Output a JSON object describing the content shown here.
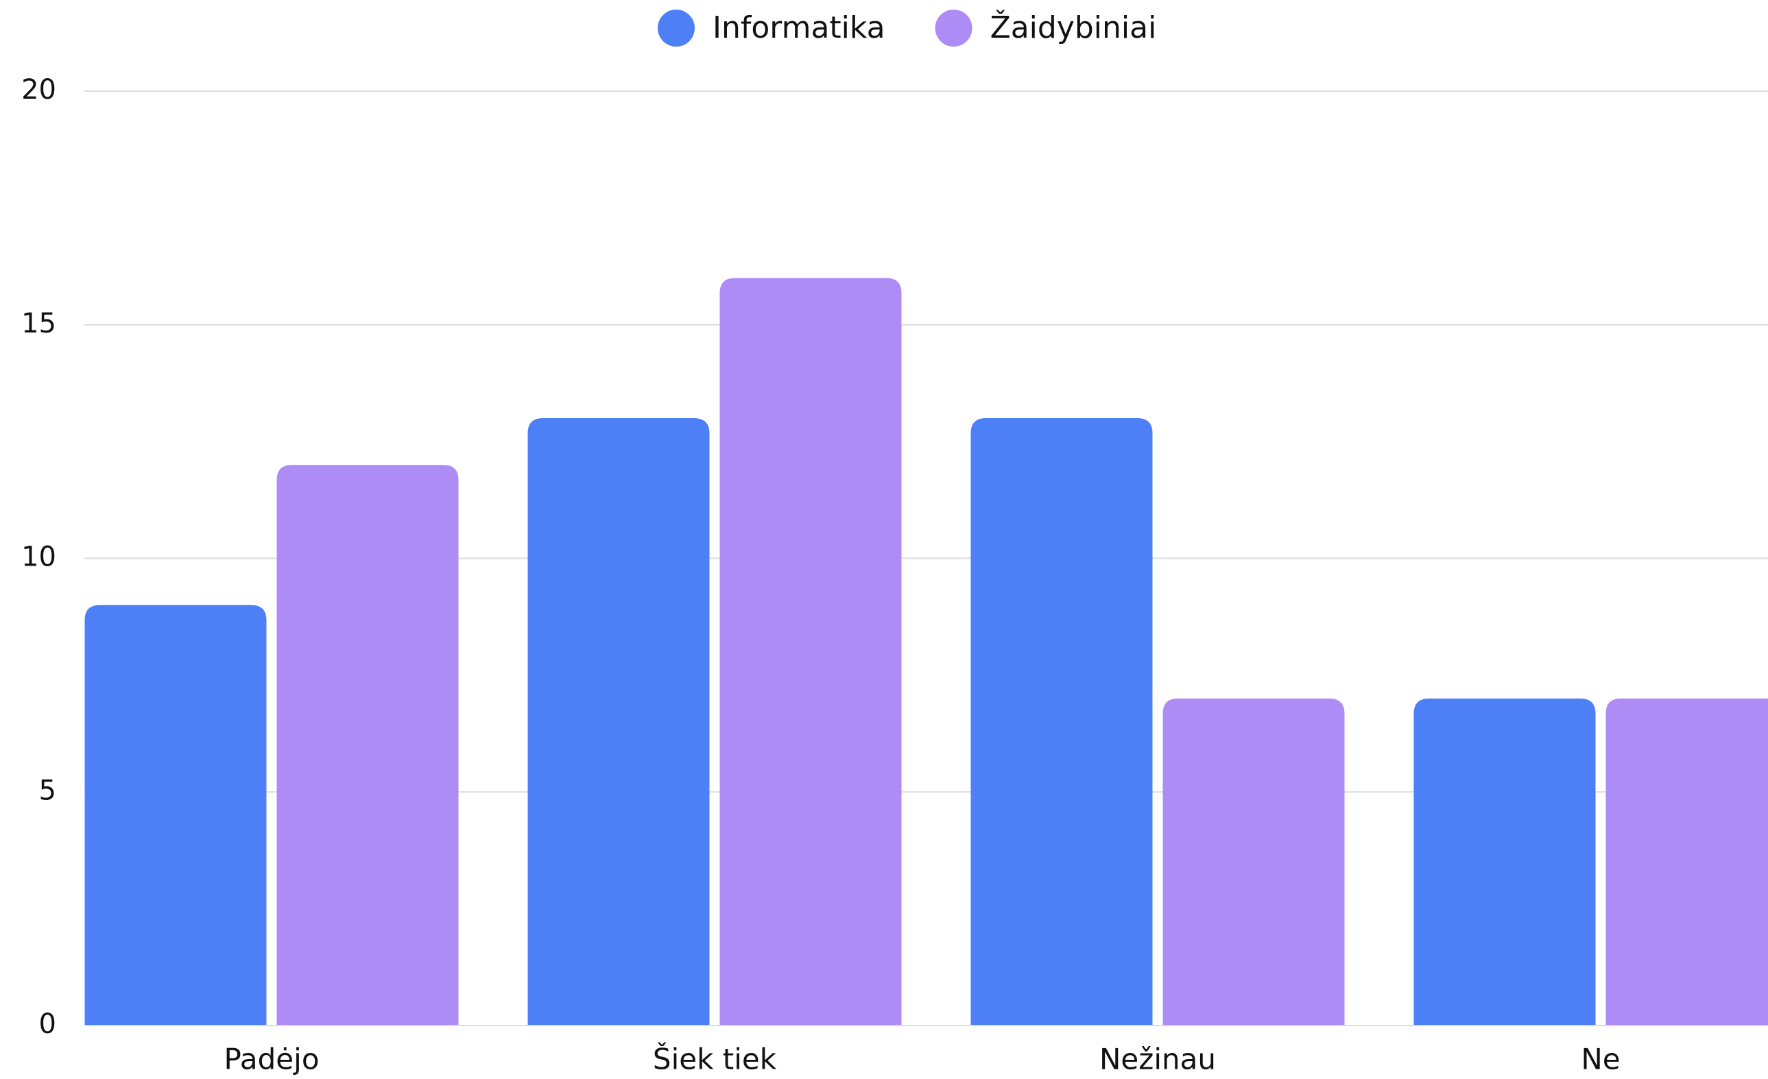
{
  "chart_data": {
    "type": "bar",
    "categories": [
      "Padėjo",
      "Šiek tiek",
      "Nežinau",
      "Ne"
    ],
    "series": [
      {
        "name": "Informatika",
        "color": "#4d80f7",
        "values": [
          9,
          13,
          13,
          7
        ]
      },
      {
        "name": "Žaidybiniai",
        "color": "#ae8cf5",
        "values": [
          12,
          16,
          7,
          7
        ]
      }
    ],
    "ylim": [
      0,
      20
    ],
    "yticks": [
      0,
      5,
      10,
      15,
      20
    ],
    "grid": true,
    "legend": "top"
  }
}
